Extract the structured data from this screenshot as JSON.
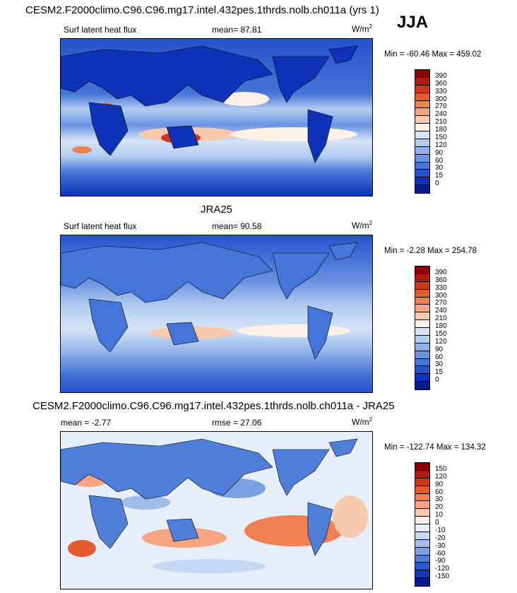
{
  "panels": [
    {
      "title": "CESM2.F2000climo.C96.C96.mg17.intel.432pes.1thrds.nolb.ch011a (yrs 1)",
      "season": "JJA",
      "variable": "Surf latent heat flux",
      "mean_label": "mean=",
      "mean_value": "87.81",
      "units": "W/m",
      "units_sup": "2",
      "minmax": "Min = -60.46 Max = 459.02",
      "colorbar": {
        "labels": [
          "390",
          "360",
          "330",
          "300",
          "270",
          "240",
          "210",
          "180",
          "150",
          "120",
          "90",
          "60",
          "30",
          "15",
          "0"
        ],
        "colors": [
          "#8b0000",
          "#b4190f",
          "#d2361a",
          "#e55a2d",
          "#f07f52",
          "#f5a57f",
          "#f8c9ad",
          "#fdf0e6",
          "#d5e4f6",
          "#b2ccf0",
          "#8eb1ea",
          "#6a93e2",
          "#4575d8",
          "#2553cd",
          "#0f33b8",
          "#071c8c"
        ]
      }
    },
    {
      "title": "JRA25",
      "variable": "Surf latent heat flux",
      "mean_label": "mean=",
      "mean_value": "90.58",
      "units": "W/m",
      "units_sup": "2",
      "minmax": "Min =  -2.28 Max = 254.78",
      "colorbar": {
        "labels": [
          "390",
          "360",
          "330",
          "300",
          "270",
          "240",
          "210",
          "180",
          "150",
          "120",
          "90",
          "60",
          "30",
          "15",
          "0"
        ],
        "colors": [
          "#8b0000",
          "#b4190f",
          "#d2361a",
          "#e55a2d",
          "#f07f52",
          "#f5a57f",
          "#f8c9ad",
          "#fdf0e6",
          "#d5e4f6",
          "#b2ccf0",
          "#8eb1ea",
          "#6a93e2",
          "#4575d8",
          "#2553cd",
          "#0f33b8",
          "#071c8c"
        ]
      }
    },
    {
      "title": "CESM2.F2000climo.C96.C96.mg17.intel.432pes.1thrds.nolb.ch011a - JRA25",
      "mean_label": "mean =",
      "mean_value": "-2.77",
      "rmse_label": "rmse =",
      "rmse_value": "27.06",
      "units": "W/m",
      "units_sup": "2",
      "minmax": "Min = -122.74 Max = 134.32",
      "colorbar": {
        "labels": [
          "150",
          "120",
          "90",
          "60",
          "30",
          "20",
          "10",
          "0",
          "-10",
          "-20",
          "-30",
          "-60",
          "-90",
          "-120",
          "-150"
        ],
        "colors": [
          "#8b0000",
          "#b4190f",
          "#d2361a",
          "#e55a2d",
          "#f07f52",
          "#f5a57f",
          "#f8c9ad",
          "#fdf0e6",
          "#e6eefa",
          "#c5d8f3",
          "#9fbdec",
          "#7aa0e4",
          "#4f7fd9",
          "#2a58cd",
          "#1236b6",
          "#071c8c"
        ]
      }
    }
  ],
  "colors": {
    "land_outline": "#000000"
  }
}
